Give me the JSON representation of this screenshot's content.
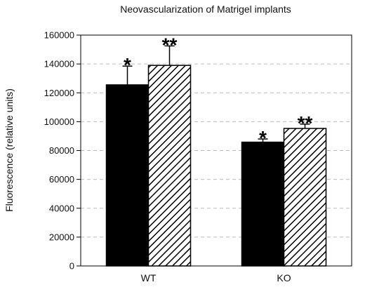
{
  "chart_data": {
    "type": "bar",
    "title": "Neovascularization of Matrigel implants",
    "xlabel": "",
    "ylabel": "Fluorescence (relative units)",
    "categories": [
      "WT",
      "KO"
    ],
    "series": [
      {
        "values": [
          125500,
          85800
        ],
        "errors": [
          13000,
          2200
        ],
        "annotations": [
          "*",
          "*"
        ],
        "fill": "solid",
        "color": "#000000"
      },
      {
        "values": [
          139000,
          95300
        ],
        "errors": [
          13500,
          3000
        ],
        "annotations": [
          "**",
          "**"
        ],
        "fill": "hatched",
        "color": "#000000"
      }
    ],
    "ylim": [
      0,
      160000
    ],
    "yticks": [
      0,
      20000,
      40000,
      60000,
      80000,
      100000,
      120000,
      140000,
      160000
    ],
    "ytick_labels": [
      "0",
      "20000",
      "40000",
      "60000",
      "80000",
      "100000",
      "120000",
      "140000",
      "160000"
    ],
    "grid": true,
    "grid_style": "dashed"
  }
}
